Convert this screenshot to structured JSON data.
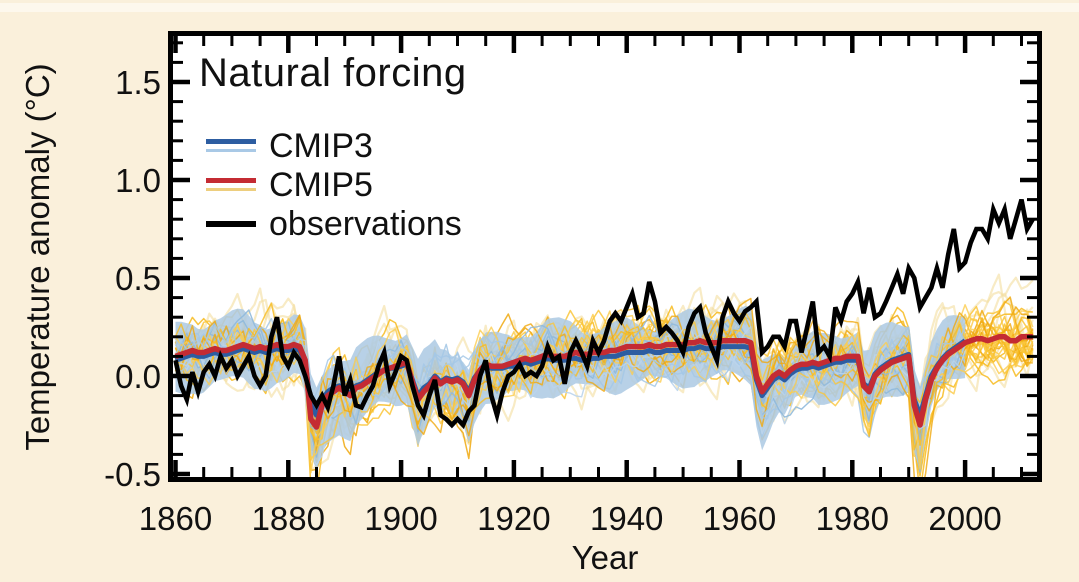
{
  "figure": {
    "title": "Natural forcing",
    "xlabel": "Year",
    "ylabel": "Temperature anomaly (°C)",
    "legend": [
      {
        "label": "CMIP3",
        "thick_color": "#2D5DA1",
        "thin_color": "#A9C9E6"
      },
      {
        "label": "CMIP5",
        "thick_color": "#C42B33",
        "thin_color": "#EDCE7E"
      },
      {
        "label": "observations",
        "thick_color": "#000000",
        "thin_color": null
      }
    ]
  },
  "colors": {
    "background": "#FAF0DB",
    "plot_background": "#FFFFFF",
    "axis": "#000000",
    "text": "#111111",
    "cmip3_mean": "#2D5DA1",
    "cmip3_runs": "#A9C9E6",
    "cmip3_band": "#AECBE4",
    "cmip5_mean": "#C42B33",
    "cmip5_runs": "#F9BE2B",
    "cmip5_runs_pale": "#F3DD9F",
    "observations": "#000000"
  },
  "chart_data": {
    "type": "line",
    "title": "Natural forcing",
    "xlabel": "Year",
    "ylabel": "Temperature anomaly (°C)",
    "xlim": [
      1859,
      2013
    ],
    "ylim": [
      -0.52,
      1.72
    ],
    "grid": false,
    "legend_position": "upper-left-inside",
    "x_ticks": [
      {
        "label": "1860",
        "value": 1860
      },
      {
        "label": "1880",
        "value": 1880
      },
      {
        "label": "1900",
        "value": 1900
      },
      {
        "label": "1920",
        "value": 1920
      },
      {
        "label": "1940",
        "value": 1940
      },
      {
        "label": "1960",
        "value": 1960
      },
      {
        "label": "1980",
        "value": 1980
      },
      {
        "label": "2000",
        "value": 2000
      }
    ],
    "y_ticks": [
      {
        "label": "-0.5",
        "value": -0.5
      },
      {
        "label": "0.0",
        "value": 0.0
      },
      {
        "label": "0.5",
        "value": 0.5
      },
      {
        "label": "1.0",
        "value": 1.0
      },
      {
        "label": "1.5",
        "value": 1.5
      }
    ],
    "x_minor_step": 5,
    "y_minor_step": 0.1,
    "series": [
      {
        "name": "observations",
        "color": "#000000",
        "x_start": 1860,
        "x_end": 2012,
        "values": [
          0.08,
          -0.05,
          -0.12,
          0.02,
          -0.08,
          0.02,
          0.06,
          0.0,
          0.1,
          0.04,
          0.08,
          0.0,
          0.05,
          0.1,
          0.0,
          -0.05,
          0.0,
          0.2,
          0.3,
          0.1,
          0.05,
          0.12,
          0.08,
          0.0,
          -0.1,
          -0.15,
          -0.1,
          -0.16,
          -0.05,
          0.1,
          -0.1,
          -0.02,
          -0.15,
          -0.16,
          -0.1,
          -0.05,
          0.05,
          0.12,
          -0.05,
          0.02,
          0.1,
          0.08,
          -0.05,
          -0.15,
          -0.2,
          -0.1,
          -0.02,
          -0.2,
          -0.22,
          -0.25,
          -0.22,
          -0.25,
          -0.18,
          -0.15,
          0.0,
          0.08,
          -0.1,
          -0.2,
          -0.08,
          0.0,
          0.02,
          0.06,
          0.0,
          0.02,
          0.0,
          0.05,
          0.15,
          0.08,
          0.1,
          -0.04,
          0.12,
          0.18,
          0.12,
          0.05,
          0.18,
          0.12,
          0.18,
          0.28,
          0.32,
          0.28,
          0.35,
          0.42,
          0.3,
          0.32,
          0.48,
          0.38,
          0.22,
          0.25,
          0.22,
          0.18,
          0.12,
          0.25,
          0.32,
          0.35,
          0.22,
          0.15,
          0.08,
          0.3,
          0.38,
          0.32,
          0.28,
          0.33,
          0.35,
          0.38,
          0.12,
          0.15,
          0.2,
          0.2,
          0.15,
          0.28,
          0.28,
          0.12,
          0.25,
          0.38,
          0.12,
          0.15,
          0.1,
          0.35,
          0.28,
          0.38,
          0.42,
          0.48,
          0.32,
          0.45,
          0.3,
          0.32,
          0.38,
          0.45,
          0.52,
          0.42,
          0.55,
          0.5,
          0.35,
          0.4,
          0.45,
          0.55,
          0.45,
          0.62,
          0.75,
          0.55,
          0.58,
          0.68,
          0.75,
          0.75,
          0.7,
          0.85,
          0.78,
          0.85,
          0.7,
          0.8,
          0.9,
          0.75,
          0.8
        ]
      },
      {
        "name": "CMIP5 multi-model mean",
        "color": "#C42B33",
        "x_start": 1860,
        "x_end": 2012,
        "values": [
          0.1,
          0.11,
          0.12,
          0.13,
          0.12,
          0.12,
          0.13,
          0.14,
          0.13,
          0.13,
          0.14,
          0.15,
          0.16,
          0.15,
          0.14,
          0.15,
          0.14,
          0.15,
          0.16,
          0.15,
          0.15,
          0.16,
          0.15,
          0.08,
          -0.22,
          -0.26,
          -0.15,
          -0.1,
          -0.08,
          -0.06,
          -0.08,
          -0.1,
          -0.06,
          -0.05,
          -0.03,
          -0.01,
          0.01,
          0.03,
          0.04,
          0.05,
          0.06,
          0.07,
          -0.03,
          -0.12,
          -0.08,
          -0.05,
          -0.01,
          -0.04,
          -0.02,
          -0.03,
          -0.02,
          -0.04,
          -0.1,
          -0.02,
          0.03,
          0.06,
          0.05,
          0.05,
          0.05,
          0.06,
          0.07,
          0.08,
          0.09,
          0.08,
          0.09,
          0.1,
          0.11,
          0.1,
          0.1,
          0.1,
          0.11,
          0.12,
          0.11,
          0.11,
          0.12,
          0.12,
          0.12,
          0.13,
          0.13,
          0.14,
          0.15,
          0.15,
          0.15,
          0.15,
          0.16,
          0.15,
          0.15,
          0.16,
          0.16,
          0.16,
          0.16,
          0.17,
          0.17,
          0.18,
          0.17,
          0.17,
          0.17,
          0.18,
          0.18,
          0.18,
          0.18,
          0.18,
          0.17,
          0.0,
          -0.08,
          -0.04,
          0.0,
          0.02,
          0.0,
          0.03,
          0.05,
          0.06,
          0.06,
          0.07,
          0.06,
          0.07,
          0.08,
          0.09,
          0.09,
          0.1,
          0.1,
          0.1,
          -0.05,
          -0.08,
          0.0,
          0.03,
          0.05,
          0.07,
          0.08,
          0.09,
          0.1,
          -0.15,
          -0.25,
          -0.12,
          -0.02,
          0.04,
          0.08,
          0.11,
          0.13,
          0.15,
          0.17,
          0.18,
          0.19,
          0.19,
          0.18,
          0.19,
          0.2,
          0.2,
          0.18,
          0.18,
          0.2,
          0.2,
          0.2
        ]
      },
      {
        "name": "CMIP3 multi-model mean",
        "color": "#2D5DA1",
        "x_start": 1860,
        "x_end": 2000,
        "values": [
          0.08,
          0.09,
          0.1,
          0.11,
          0.1,
          0.1,
          0.11,
          0.12,
          0.11,
          0.11,
          0.12,
          0.13,
          0.14,
          0.13,
          0.12,
          0.13,
          0.12,
          0.13,
          0.14,
          0.13,
          0.13,
          0.14,
          0.13,
          0.07,
          -0.15,
          -0.2,
          -0.12,
          -0.08,
          -0.06,
          -0.05,
          -0.07,
          -0.09,
          -0.05,
          -0.04,
          -0.02,
          0.0,
          0.02,
          0.03,
          0.04,
          0.04,
          0.05,
          0.06,
          -0.02,
          -0.1,
          -0.06,
          -0.04,
          0.0,
          -0.03,
          -0.01,
          -0.02,
          -0.01,
          -0.03,
          -0.08,
          -0.01,
          0.03,
          0.05,
          0.04,
          0.04,
          0.04,
          0.05,
          0.05,
          0.06,
          0.07,
          0.06,
          0.07,
          0.08,
          0.09,
          0.08,
          0.08,
          0.08,
          0.09,
          0.09,
          0.08,
          0.08,
          0.09,
          0.09,
          0.1,
          0.1,
          0.1,
          0.11,
          0.12,
          0.12,
          0.12,
          0.12,
          0.13,
          0.12,
          0.12,
          0.13,
          0.13,
          0.13,
          0.13,
          0.14,
          0.14,
          0.15,
          0.14,
          0.14,
          0.14,
          0.15,
          0.15,
          0.15,
          0.15,
          0.15,
          0.14,
          -0.02,
          -0.1,
          -0.06,
          -0.02,
          0.0,
          -0.02,
          0.01,
          0.03,
          0.04,
          0.04,
          0.05,
          0.04,
          0.05,
          0.06,
          0.07,
          0.07,
          0.08,
          0.08,
          0.08,
          -0.04,
          -0.06,
          0.01,
          0.04,
          0.06,
          0.08,
          0.09,
          0.1,
          0.11,
          -0.12,
          -0.2,
          -0.1,
          0.0,
          0.05,
          0.09,
          0.12,
          0.14,
          0.16,
          0.18
        ]
      }
    ],
    "ensembles": [
      {
        "name": "CMIP5 individual runs",
        "color": "#F9BE2B",
        "style": "thin spaghetti lines",
        "n_runs_drawn": 26,
        "x_start": 1860,
        "x_end": 2012,
        "approx_half_spread": 0.25
      },
      {
        "name": "CMIP3 individual runs",
        "color": "#A9C9E6",
        "style": "thin lines over filled band",
        "n_runs_drawn": 12,
        "x_start": 1860,
        "x_end": 2000,
        "approx_half_spread": 0.19
      }
    ],
    "volcanic_dip_years_visible": [
      1884,
      1902,
      1912,
      1963,
      1982,
      1991
    ]
  }
}
